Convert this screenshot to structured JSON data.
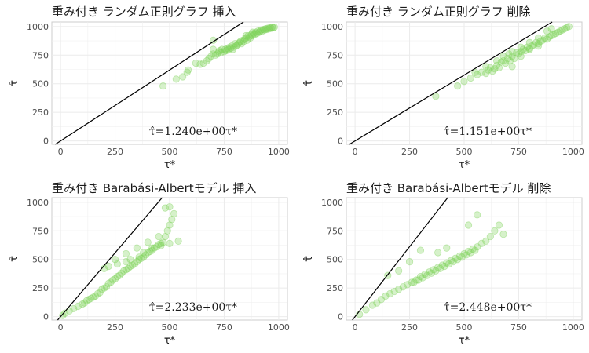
{
  "chart_data": [
    {
      "type": "scatter",
      "title": "重み付き ランダム正則グラフ 挿入",
      "xlabel": "τ*",
      "ylabel": "τ̂",
      "xlim": [
        -40,
        1040
      ],
      "ylim": [
        -30,
        1040
      ],
      "xticks": [
        0,
        250,
        500,
        750,
        1000
      ],
      "yticks": [
        0,
        250,
        500,
        750,
        1000
      ],
      "grid": true,
      "slope": 1.24,
      "annotation": "τ̂=1.240e+00τ*",
      "points": [
        [
          470,
          480
        ],
        [
          530,
          540
        ],
        [
          560,
          560
        ],
        [
          580,
          600
        ],
        [
          585,
          620
        ],
        [
          620,
          680
        ],
        [
          640,
          670
        ],
        [
          655,
          680
        ],
        [
          670,
          700
        ],
        [
          680,
          720
        ],
        [
          690,
          740
        ],
        [
          700,
          760
        ],
        [
          700,
          800
        ],
        [
          710,
          750
        ],
        [
          720,
          760
        ],
        [
          725,
          780
        ],
        [
          730,
          790
        ],
        [
          735,
          770
        ],
        [
          740,
          800
        ],
        [
          750,
          780
        ],
        [
          755,
          800
        ],
        [
          760,
          790
        ],
        [
          765,
          810
        ],
        [
          770,
          800
        ],
        [
          775,
          820
        ],
        [
          780,
          810
        ],
        [
          785,
          830
        ],
        [
          790,
          800
        ],
        [
          795,
          820
        ],
        [
          800,
          850
        ],
        [
          805,
          830
        ],
        [
          810,
          840
        ],
        [
          815,
          850
        ],
        [
          820,
          860
        ],
        [
          825,
          870
        ],
        [
          830,
          850
        ],
        [
          835,
          880
        ],
        [
          840,
          870
        ],
        [
          845,
          890
        ],
        [
          850,
          900
        ],
        [
          855,
          880
        ],
        [
          860,
          920
        ],
        [
          865,
          910
        ],
        [
          870,
          900
        ],
        [
          875,
          930
        ],
        [
          880,
          920
        ],
        [
          885,
          940
        ],
        [
          890,
          930
        ],
        [
          895,
          950
        ],
        [
          900,
          940
        ],
        [
          905,
          960
        ],
        [
          910,
          950
        ],
        [
          915,
          960
        ],
        [
          920,
          970
        ],
        [
          925,
          960
        ],
        [
          930,
          975
        ],
        [
          935,
          970
        ],
        [
          940,
          980
        ],
        [
          945,
          975
        ],
        [
          950,
          985
        ],
        [
          955,
          980
        ],
        [
          960,
          990
        ],
        [
          965,
          985
        ],
        [
          970,
          995
        ],
        [
          975,
          990
        ],
        [
          980,
          995
        ],
        [
          700,
          880
        ],
        [
          850,
          920
        ],
        [
          880,
          950
        ]
      ]
    },
    {
      "type": "scatter",
      "title": "重み付き ランダム正則グラフ 削除",
      "xlabel": "τ*",
      "ylabel": "τ̂",
      "xlim": [
        -40,
        1040
      ],
      "ylim": [
        -30,
        1040
      ],
      "xticks": [
        0,
        250,
        500,
        750,
        1000
      ],
      "yticks": [
        0,
        250,
        500,
        750,
        1000
      ],
      "grid": true,
      "slope": 1.151,
      "annotation": "τ̂=1.151e+00τ*",
      "points": [
        [
          370,
          390
        ],
        [
          470,
          480
        ],
        [
          500,
          520
        ],
        [
          530,
          550
        ],
        [
          560,
          580
        ],
        [
          580,
          600
        ],
        [
          600,
          590
        ],
        [
          610,
          620
        ],
        [
          620,
          640
        ],
        [
          630,
          610
        ],
        [
          640,
          630
        ],
        [
          650,
          660
        ],
        [
          660,
          640
        ],
        [
          670,
          690
        ],
        [
          680,
          700
        ],
        [
          690,
          680
        ],
        [
          700,
          720
        ],
        [
          705,
          760
        ],
        [
          710,
          700
        ],
        [
          720,
          740
        ],
        [
          730,
          720
        ],
        [
          740,
          770
        ],
        [
          750,
          760
        ],
        [
          760,
          780
        ],
        [
          770,
          800
        ],
        [
          780,
          790
        ],
        [
          790,
          820
        ],
        [
          800,
          810
        ],
        [
          810,
          830
        ],
        [
          820,
          840
        ],
        [
          830,
          860
        ],
        [
          840,
          850
        ],
        [
          850,
          870
        ],
        [
          860,
          880
        ],
        [
          870,
          900
        ],
        [
          880,
          890
        ],
        [
          890,
          910
        ],
        [
          900,
          920
        ],
        [
          910,
          930
        ],
        [
          920,
          940
        ],
        [
          930,
          950
        ],
        [
          940,
          960
        ],
        [
          950,
          970
        ],
        [
          960,
          980
        ],
        [
          970,
          990
        ],
        [
          980,
          1000
        ],
        [
          650,
          700
        ],
        [
          680,
          740
        ],
        [
          720,
          780
        ],
        [
          760,
          820
        ],
        [
          800,
          860
        ],
        [
          840,
          900
        ],
        [
          880,
          960
        ],
        [
          900,
          980
        ],
        [
          600,
          650
        ],
        [
          550,
          600
        ],
        [
          720,
          650
        ],
        [
          760,
          740
        ],
        [
          800,
          800
        ],
        [
          840,
          830
        ]
      ]
    },
    {
      "type": "scatter",
      "title": "重み付き Barabási-Albertモデル 挿入",
      "xlabel": "τ*",
      "ylabel": "τ̂",
      "xlim": [
        -40,
        1040
      ],
      "ylim": [
        -30,
        1040
      ],
      "xticks": [
        0,
        250,
        500,
        750,
        1000
      ],
      "yticks": [
        0,
        250,
        500,
        750,
        1000
      ],
      "grid": true,
      "slope": 2.233,
      "annotation": "τ̂=2.233e+00τ*",
      "points": [
        [
          10,
          10
        ],
        [
          20,
          30
        ],
        [
          40,
          50
        ],
        [
          60,
          70
        ],
        [
          80,
          90
        ],
        [
          100,
          110
        ],
        [
          110,
          120
        ],
        [
          120,
          140
        ],
        [
          130,
          150
        ],
        [
          140,
          160
        ],
        [
          150,
          170
        ],
        [
          160,
          180
        ],
        [
          170,
          200
        ],
        [
          180,
          210
        ],
        [
          190,
          240
        ],
        [
          200,
          250
        ],
        [
          210,
          260
        ],
        [
          220,
          290
        ],
        [
          230,
          300
        ],
        [
          240,
          320
        ],
        [
          250,
          330
        ],
        [
          260,
          350
        ],
        [
          270,
          360
        ],
        [
          280,
          380
        ],
        [
          290,
          400
        ],
        [
          300,
          410
        ],
        [
          310,
          420
        ],
        [
          320,
          440
        ],
        [
          330,
          450
        ],
        [
          340,
          460
        ],
        [
          350,
          480
        ],
        [
          360,
          500
        ],
        [
          370,
          510
        ],
        [
          380,
          520
        ],
        [
          390,
          540
        ],
        [
          400,
          560
        ],
        [
          410,
          570
        ],
        [
          420,
          580
        ],
        [
          430,
          600
        ],
        [
          440,
          610
        ],
        [
          450,
          630
        ],
        [
          460,
          640
        ],
        [
          470,
          650
        ],
        [
          480,
          700
        ],
        [
          490,
          750
        ],
        [
          500,
          800
        ],
        [
          510,
          850
        ],
        [
          520,
          900
        ],
        [
          480,
          950
        ],
        [
          500,
          960
        ],
        [
          250,
          500
        ],
        [
          300,
          550
        ],
        [
          350,
          600
        ],
        [
          400,
          650
        ],
        [
          450,
          700
        ],
        [
          200,
          420
        ],
        [
          220,
          440
        ],
        [
          260,
          460
        ],
        [
          300,
          480
        ],
        [
          320,
          500
        ],
        [
          360,
          520
        ],
        [
          380,
          560
        ],
        [
          420,
          600
        ],
        [
          460,
          620
        ],
        [
          500,
          640
        ],
        [
          540,
          660
        ]
      ]
    },
    {
      "type": "scatter",
      "title": "重み付き Barabási-Albertモデル 削除",
      "xlabel": "τ*",
      "ylabel": "τ̂",
      "xlim": [
        -40,
        1040
      ],
      "ylim": [
        -30,
        1040
      ],
      "xticks": [
        0,
        250,
        500,
        750,
        1000
      ],
      "yticks": [
        0,
        250,
        500,
        750,
        1000
      ],
      "grid": true,
      "slope": 2.448,
      "annotation": "τ̂=2.448e+00τ*",
      "points": [
        [
          20,
          20
        ],
        [
          50,
          60
        ],
        [
          80,
          100
        ],
        [
          100,
          120
        ],
        [
          120,
          150
        ],
        [
          140,
          180
        ],
        [
          160,
          200
        ],
        [
          180,
          220
        ],
        [
          200,
          240
        ],
        [
          220,
          260
        ],
        [
          240,
          280
        ],
        [
          260,
          300
        ],
        [
          280,
          320
        ],
        [
          300,
          350
        ],
        [
          320,
          370
        ],
        [
          340,
          390
        ],
        [
          360,
          410
        ],
        [
          380,
          430
        ],
        [
          400,
          450
        ],
        [
          420,
          470
        ],
        [
          440,
          490
        ],
        [
          460,
          510
        ],
        [
          480,
          530
        ],
        [
          500,
          550
        ],
        [
          520,
          570
        ],
        [
          540,
          590
        ],
        [
          560,
          610
        ],
        [
          580,
          640
        ],
        [
          600,
          660
        ],
        [
          620,
          700
        ],
        [
          640,
          750
        ],
        [
          660,
          800
        ],
        [
          680,
          720
        ],
        [
          560,
          890
        ],
        [
          520,
          800
        ],
        [
          420,
          600
        ],
        [
          380,
          560
        ],
        [
          300,
          580
        ],
        [
          200,
          400
        ],
        [
          150,
          360
        ],
        [
          250,
          480
        ],
        [
          450,
          480
        ],
        [
          470,
          500
        ],
        [
          490,
          520
        ],
        [
          510,
          540
        ],
        [
          530,
          560
        ],
        [
          550,
          580
        ],
        [
          430,
          460
        ],
        [
          410,
          440
        ],
        [
          390,
          420
        ],
        [
          370,
          400
        ],
        [
          350,
          380
        ],
        [
          330,
          360
        ],
        [
          310,
          340
        ],
        [
          290,
          320
        ],
        [
          270,
          300
        ]
      ]
    }
  ]
}
